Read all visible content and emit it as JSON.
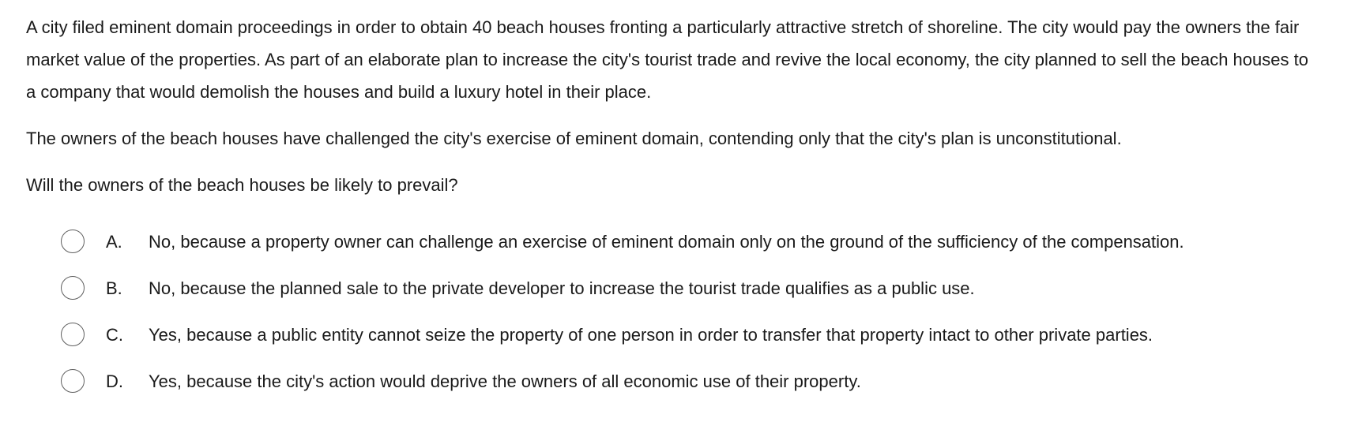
{
  "question": {
    "paragraphs": [
      "A city filed eminent domain proceedings in order to obtain 40 beach houses fronting a particularly attractive stretch of shoreline.  The city would pay the owners the fair market value of the properties.  As part of an elaborate plan to increase the city's tourist trade and revive the local economy, the city planned to sell the beach houses to a company that would demolish the houses and build a luxury hotel in their place.",
      "The owners of the beach houses have challenged the city's exercise of eminent domain, contending only that the city's plan is unconstitutional.",
      "Will the owners of the beach houses be likely to prevail?"
    ]
  },
  "options": [
    {
      "letter": "A.",
      "text": "No, because a property owner can challenge an exercise of eminent domain only on the ground of the sufficiency of the compensation.",
      "selected": false
    },
    {
      "letter": "B.",
      "text": "No, because the planned sale to the private developer to increase the tourist trade qualifies as a public use.",
      "selected": false
    },
    {
      "letter": "C.",
      "text": "Yes, because a public entity cannot seize the property of one person in order to transfer that property intact to other private parties.",
      "selected": false
    },
    {
      "letter": "D.",
      "text": "Yes, because the city's action would deprive the owners of all economic use of their property.",
      "selected": false
    }
  ]
}
